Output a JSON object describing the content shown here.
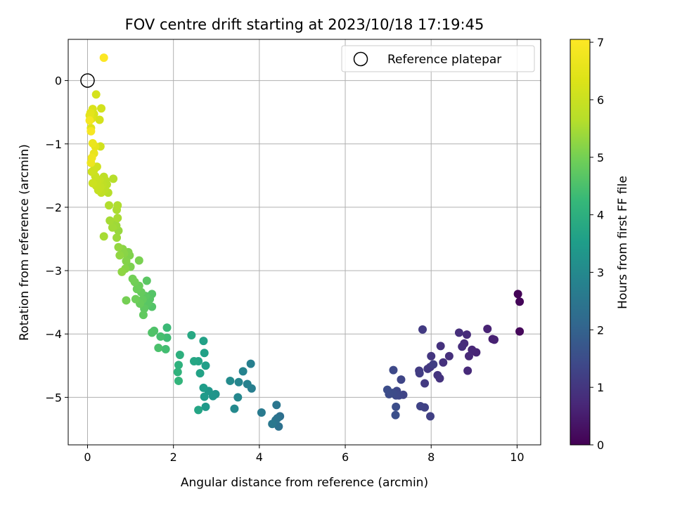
{
  "chart_data": {
    "type": "scatter",
    "title": "FOV centre drift starting at 2023/10/18 17:19:45",
    "xlabel": "Angular distance from reference (arcmin)",
    "ylabel": "Rotation from reference (arcmin)",
    "xlim": [
      -0.45,
      10.55
    ],
    "ylim": [
      -5.75,
      0.65
    ],
    "xticks": [
      0,
      2,
      4,
      6,
      8,
      10
    ],
    "yticks": [
      0,
      -1,
      -2,
      -3,
      -4,
      -5
    ],
    "grid": true,
    "legend": {
      "position": "top-right",
      "entries": [
        "Reference platepar"
      ]
    },
    "reference_point": {
      "x": 0,
      "y": 0,
      "label": "Reference platepar"
    },
    "colorbar": {
      "label": "Hours from first FF file",
      "colormap": "viridis",
      "range": [
        0,
        7.05
      ],
      "ticks": [
        0,
        1,
        2,
        3,
        4,
        5,
        6,
        7
      ]
    },
    "points": [
      {
        "x": 10.02,
        "y": -3.37,
        "c": 0.05
      },
      {
        "x": 10.06,
        "y": -3.49,
        "c": 0.08
      },
      {
        "x": 10.06,
        "y": -3.96,
        "c": 0.12
      },
      {
        "x": 9.43,
        "y": -4.08,
        "c": 0.55
      },
      {
        "x": 9.47,
        "y": -4.09,
        "c": 0.58
      },
      {
        "x": 9.31,
        "y": -3.92,
        "c": 0.62
      },
      {
        "x": 9.05,
        "y": -4.29,
        "c": 0.65
      },
      {
        "x": 8.95,
        "y": -4.25,
        "c": 0.68
      },
      {
        "x": 8.88,
        "y": -4.35,
        "c": 0.72
      },
      {
        "x": 8.85,
        "y": -4.58,
        "c": 0.75
      },
      {
        "x": 8.83,
        "y": -4.01,
        "c": 0.78
      },
      {
        "x": 8.77,
        "y": -4.15,
        "c": 0.8
      },
      {
        "x": 8.72,
        "y": -4.2,
        "c": 0.82
      },
      {
        "x": 8.65,
        "y": -3.98,
        "c": 0.85
      },
      {
        "x": 8.42,
        "y": -4.35,
        "c": 0.88
      },
      {
        "x": 8.28,
        "y": -4.45,
        "c": 0.9
      },
      {
        "x": 8.22,
        "y": -4.19,
        "c": 0.92
      },
      {
        "x": 8.2,
        "y": -4.7,
        "c": 0.95
      },
      {
        "x": 8.15,
        "y": -4.65,
        "c": 0.97
      },
      {
        "x": 8.0,
        "y": -4.35,
        "c": 1.0
      },
      {
        "x": 7.98,
        "y": -4.52,
        "c": 1.02
      },
      {
        "x": 7.92,
        "y": -4.55,
        "c": 1.05
      },
      {
        "x": 7.85,
        "y": -4.78,
        "c": 1.08
      },
      {
        "x": 7.8,
        "y": -3.93,
        "c": 1.1
      },
      {
        "x": 7.72,
        "y": -4.58,
        "c": 1.12
      },
      {
        "x": 7.73,
        "y": -4.62,
        "c": 1.15
      },
      {
        "x": 8.05,
        "y": -4.48,
        "c": 1.18
      },
      {
        "x": 7.98,
        "y": -5.3,
        "c": 1.22
      },
      {
        "x": 7.85,
        "y": -5.16,
        "c": 1.25
      },
      {
        "x": 7.75,
        "y": -5.14,
        "c": 1.28
      },
      {
        "x": 7.35,
        "y": -4.96,
        "c": 1.3
      },
      {
        "x": 7.3,
        "y": -4.72,
        "c": 1.32
      },
      {
        "x": 7.25,
        "y": -4.97,
        "c": 1.35
      },
      {
        "x": 7.2,
        "y": -4.9,
        "c": 1.38
      },
      {
        "x": 7.18,
        "y": -4.97,
        "c": 1.4
      },
      {
        "x": 7.12,
        "y": -4.57,
        "c": 1.42
      },
      {
        "x": 7.1,
        "y": -4.93,
        "c": 1.45
      },
      {
        "x": 7.02,
        "y": -4.95,
        "c": 1.47
      },
      {
        "x": 6.98,
        "y": -4.88,
        "c": 1.5
      },
      {
        "x": 7.18,
        "y": -5.15,
        "c": 1.52
      },
      {
        "x": 7.17,
        "y": -5.28,
        "c": 1.55
      },
      {
        "x": 4.48,
        "y": -5.3,
        "c": 2.3
      },
      {
        "x": 4.45,
        "y": -5.46,
        "c": 2.35
      },
      {
        "x": 4.42,
        "y": -5.33,
        "c": 2.4
      },
      {
        "x": 4.38,
        "y": -5.36,
        "c": 2.45
      },
      {
        "x": 4.4,
        "y": -5.12,
        "c": 2.5
      },
      {
        "x": 4.3,
        "y": -5.42,
        "c": 2.55
      },
      {
        "x": 4.05,
        "y": -5.24,
        "c": 2.6
      },
      {
        "x": 3.82,
        "y": -4.86,
        "c": 2.7
      },
      {
        "x": 3.8,
        "y": -4.47,
        "c": 2.75
      },
      {
        "x": 3.72,
        "y": -4.79,
        "c": 2.8
      },
      {
        "x": 3.62,
        "y": -4.59,
        "c": 2.85
      },
      {
        "x": 3.52,
        "y": -4.76,
        "c": 2.9
      },
      {
        "x": 3.5,
        "y": -5.0,
        "c": 2.95
      },
      {
        "x": 3.42,
        "y": -5.18,
        "c": 3.0
      },
      {
        "x": 3.32,
        "y": -4.74,
        "c": 3.05
      },
      {
        "x": 2.98,
        "y": -4.95,
        "c": 3.25
      },
      {
        "x": 2.92,
        "y": -4.98,
        "c": 3.3
      },
      {
        "x": 2.82,
        "y": -4.9,
        "c": 3.35
      },
      {
        "x": 2.75,
        "y": -5.15,
        "c": 3.4
      },
      {
        "x": 2.72,
        "y": -4.99,
        "c": 3.45
      },
      {
        "x": 2.7,
        "y": -4.85,
        "c": 3.5
      },
      {
        "x": 2.75,
        "y": -4.5,
        "c": 3.55
      },
      {
        "x": 2.72,
        "y": -4.3,
        "c": 3.6
      },
      {
        "x": 2.7,
        "y": -4.11,
        "c": 3.62
      },
      {
        "x": 2.62,
        "y": -4.62,
        "c": 3.65
      },
      {
        "x": 2.58,
        "y": -4.43,
        "c": 3.7
      },
      {
        "x": 2.58,
        "y": -5.2,
        "c": 3.72
      },
      {
        "x": 2.48,
        "y": -4.43,
        "c": 3.75
      },
      {
        "x": 2.42,
        "y": -4.02,
        "c": 3.8
      },
      {
        "x": 2.15,
        "y": -4.33,
        "c": 4.0
      },
      {
        "x": 2.12,
        "y": -4.49,
        "c": 4.05
      },
      {
        "x": 2.1,
        "y": -4.6,
        "c": 4.1
      },
      {
        "x": 2.12,
        "y": -4.74,
        "c": 4.15
      },
      {
        "x": 1.85,
        "y": -3.9,
        "c": 4.3
      },
      {
        "x": 1.85,
        "y": -4.06,
        "c": 4.35
      },
      {
        "x": 1.82,
        "y": -4.24,
        "c": 4.4
      },
      {
        "x": 1.7,
        "y": -4.04,
        "c": 4.45
      },
      {
        "x": 1.65,
        "y": -4.22,
        "c": 4.5
      },
      {
        "x": 1.55,
        "y": -3.95,
        "c": 4.55
      },
      {
        "x": 1.5,
        "y": -3.98,
        "c": 4.58
      },
      {
        "x": 1.5,
        "y": -3.57,
        "c": 4.6
      },
      {
        "x": 1.5,
        "y": -3.37,
        "c": 4.62
      },
      {
        "x": 1.45,
        "y": -3.45,
        "c": 4.65
      },
      {
        "x": 1.4,
        "y": -3.52,
        "c": 4.68
      },
      {
        "x": 1.38,
        "y": -3.16,
        "c": 4.7
      },
      {
        "x": 1.35,
        "y": -3.4,
        "c": 4.72
      },
      {
        "x": 1.32,
        "y": -3.6,
        "c": 4.75
      },
      {
        "x": 1.3,
        "y": -3.7,
        "c": 4.78
      },
      {
        "x": 1.28,
        "y": -3.46,
        "c": 4.8
      },
      {
        "x": 1.25,
        "y": -3.34,
        "c": 4.82
      },
      {
        "x": 1.22,
        "y": -3.52,
        "c": 4.85
      },
      {
        "x": 1.2,
        "y": -3.24,
        "c": 4.88
      },
      {
        "x": 1.15,
        "y": -3.29,
        "c": 4.9
      },
      {
        "x": 1.12,
        "y": -3.45,
        "c": 4.92
      },
      {
        "x": 1.1,
        "y": -3.18,
        "c": 4.95
      },
      {
        "x": 1.05,
        "y": -3.13,
        "c": 4.97
      },
      {
        "x": 0.9,
        "y": -3.47,
        "c": 5.0
      },
      {
        "x": 1.2,
        "y": -2.84,
        "c": 5.05
      },
      {
        "x": 1.0,
        "y": -2.94,
        "c": 5.08
      },
      {
        "x": 0.98,
        "y": -2.76,
        "c": 5.1
      },
      {
        "x": 0.95,
        "y": -2.71,
        "c": 5.12
      },
      {
        "x": 0.9,
        "y": -2.85,
        "c": 5.15
      },
      {
        "x": 0.88,
        "y": -2.97,
        "c": 5.18
      },
      {
        "x": 0.85,
        "y": -2.73,
        "c": 5.2
      },
      {
        "x": 0.82,
        "y": -2.66,
        "c": 5.22
      },
      {
        "x": 0.8,
        "y": -3.02,
        "c": 5.25
      },
      {
        "x": 0.75,
        "y": -2.76,
        "c": 5.28
      },
      {
        "x": 0.72,
        "y": -2.63,
        "c": 5.3
      },
      {
        "x": 0.72,
        "y": -2.37,
        "c": 5.35
      },
      {
        "x": 0.68,
        "y": -2.48,
        "c": 5.38
      },
      {
        "x": 0.67,
        "y": -2.29,
        "c": 5.4
      },
      {
        "x": 0.62,
        "y": -2.24,
        "c": 5.42
      },
      {
        "x": 0.58,
        "y": -2.32,
        "c": 5.45
      },
      {
        "x": 0.52,
        "y": -2.21,
        "c": 5.48
      },
      {
        "x": 0.38,
        "y": -2.46,
        "c": 5.5
      },
      {
        "x": 0.7,
        "y": -2.17,
        "c": 5.52
      },
      {
        "x": 0.68,
        "y": -2.04,
        "c": 5.55
      },
      {
        "x": 0.7,
        "y": -1.97,
        "c": 5.58
      },
      {
        "x": 0.5,
        "y": -1.97,
        "c": 5.6
      },
      {
        "x": 0.6,
        "y": -1.55,
        "c": 5.65
      },
      {
        "x": 0.48,
        "y": -1.77,
        "c": 5.7
      },
      {
        "x": 0.45,
        "y": -1.64,
        "c": 5.72
      },
      {
        "x": 0.42,
        "y": -1.58,
        "c": 5.75
      },
      {
        "x": 0.4,
        "y": -1.72,
        "c": 5.78
      },
      {
        "x": 0.38,
        "y": -1.52,
        "c": 5.8
      },
      {
        "x": 0.35,
        "y": -1.64,
        "c": 5.82
      },
      {
        "x": 0.32,
        "y": -1.77,
        "c": 5.85
      },
      {
        "x": 0.3,
        "y": -1.68,
        "c": 5.88
      },
      {
        "x": 0.28,
        "y": -1.57,
        "c": 5.9
      },
      {
        "x": 0.25,
        "y": -1.73,
        "c": 5.92
      },
      {
        "x": 0.22,
        "y": -1.59,
        "c": 5.95
      },
      {
        "x": 0.2,
        "y": -1.66,
        "c": 5.97
      },
      {
        "x": 0.18,
        "y": -1.51,
        "c": 6.0
      },
      {
        "x": 0.15,
        "y": -1.41,
        "c": 6.02
      },
      {
        "x": 0.12,
        "y": -1.62,
        "c": 6.05
      },
      {
        "x": 0.1,
        "y": -1.44,
        "c": 6.08
      },
      {
        "x": 0.22,
        "y": -1.36,
        "c": 6.1
      },
      {
        "x": 0.3,
        "y": -1.04,
        "c": 6.12
      },
      {
        "x": 0.32,
        "y": -0.44,
        "c": 6.15
      },
      {
        "x": 0.28,
        "y": -0.62,
        "c": 6.18
      },
      {
        "x": 0.2,
        "y": -0.22,
        "c": 6.2
      },
      {
        "x": 0.15,
        "y": -0.53,
        "c": 6.25
      },
      {
        "x": 0.12,
        "y": -0.45,
        "c": 6.3
      },
      {
        "x": 0.1,
        "y": -0.6,
        "c": 6.35
      },
      {
        "x": 0.08,
        "y": -0.75,
        "c": 6.4
      },
      {
        "x": 0.07,
        "y": -0.51,
        "c": 6.45
      },
      {
        "x": 0.05,
        "y": -0.55,
        "c": 6.5
      },
      {
        "x": 0.18,
        "y": -1.04,
        "c": 6.55
      },
      {
        "x": 0.15,
        "y": -1.15,
        "c": 6.6
      },
      {
        "x": 0.12,
        "y": -0.99,
        "c": 6.65
      },
      {
        "x": 0.08,
        "y": -1.3,
        "c": 6.7
      },
      {
        "x": 0.1,
        "y": -1.22,
        "c": 6.75
      },
      {
        "x": 0.05,
        "y": -0.63,
        "c": 6.85
      },
      {
        "x": 0.08,
        "y": -0.8,
        "c": 6.9
      },
      {
        "x": 0.38,
        "y": 0.36,
        "c": 7.02
      }
    ]
  }
}
